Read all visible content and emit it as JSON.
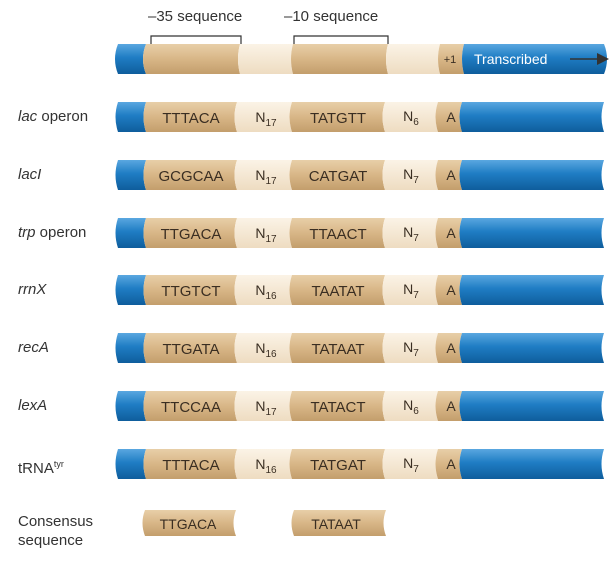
{
  "header": {
    "minus35_label": "–35 sequence",
    "minus10_label": "–10 sequence",
    "plus1_label": "+1",
    "transcribed_label": "Transcribed"
  },
  "rows": [
    {
      "name_italic": "lac",
      "name_rest": " operon",
      "minus35": "TTTACA",
      "spacer": "N",
      "spacer_sub": "17",
      "minus10": "TATGTT",
      "gap": "N",
      "gap_sub": "6",
      "start": "A"
    },
    {
      "name_italic": "lacI",
      "name_rest": "",
      "minus35": "GCGCAA",
      "spacer": "N",
      "spacer_sub": "17",
      "minus10": "CATGAT",
      "gap": "N",
      "gap_sub": "7",
      "start": "A"
    },
    {
      "name_italic": "trp",
      "name_rest": " operon",
      "minus35": "TTGACA",
      "spacer": "N",
      "spacer_sub": "17",
      "minus10": "TTAACT",
      "gap": "N",
      "gap_sub": "7",
      "start": "A"
    },
    {
      "name_italic": "rrnX",
      "name_rest": "",
      "minus35": "TTGTCT",
      "spacer": "N",
      "spacer_sub": "16",
      "minus10": "TAATAT",
      "gap": "N",
      "gap_sub": "7",
      "start": "A"
    },
    {
      "name_italic": "recA",
      "name_rest": "",
      "minus35": "TTGATA",
      "spacer": "N",
      "spacer_sub": "16",
      "minus10": "TATAAT",
      "gap": "N",
      "gap_sub": "7",
      "start": "A"
    },
    {
      "name_italic": "lexA",
      "name_rest": "",
      "minus35": "TTCCAA",
      "spacer": "N",
      "spacer_sub": "17",
      "minus10": "TATACT",
      "gap": "N",
      "gap_sub": "6",
      "start": "A"
    },
    {
      "name_italic": "",
      "name_rest": "tRNA",
      "name_sup": "tyr",
      "minus35": "TTTACA",
      "spacer": "N",
      "spacer_sub": "16",
      "minus10": "TATGAT",
      "gap": "N",
      "gap_sub": "7",
      "start": "A"
    }
  ],
  "consensus": {
    "label_line1": "Consensus",
    "label_line2": "sequence",
    "minus35": "TTGACA",
    "minus10": "TATAAT"
  },
  "colors": {
    "blue": "#1f7dc4",
    "tan": "#d9b98c",
    "light_tan": "#f6ead7"
  }
}
